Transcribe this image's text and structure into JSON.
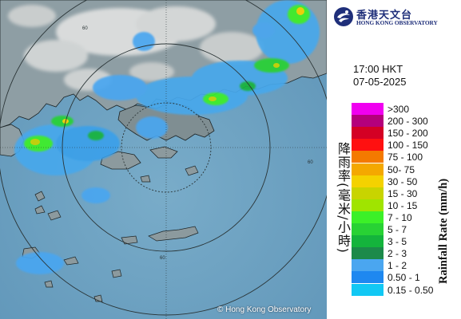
{
  "header": {
    "org_name_cn": "香港天文台",
    "org_name_en": "HONG KONG OBSERVATORY",
    "time": "17:00 HKT",
    "date": "07-05-2025"
  },
  "map": {
    "copyright": "© Hong Kong Observatory",
    "range_ring_labels": [
      "60",
      "60",
      "60"
    ],
    "colors": {
      "sea": "#6fa3c2",
      "land": "#8a9aa1",
      "urban": "#cfd2d2",
      "ring": "#2a3436"
    }
  },
  "legend": {
    "title_cn": "降雨率(毫米/小時)",
    "title_en": "Rainfall Rate (mm/h)",
    "items": [
      {
        "label": ">300",
        "color": "#f000f0"
      },
      {
        "label": "200 - 300",
        "color": "#b4007c"
      },
      {
        "label": "150 - 200",
        "color": "#d40024"
      },
      {
        "label": "100 - 150",
        "color": "#ff1010"
      },
      {
        "label": "75 - 100",
        "color": "#f47a00"
      },
      {
        "label": "50- 75",
        "color": "#f4a800"
      },
      {
        "label": "30 - 50",
        "color": "#f4d200"
      },
      {
        "label": "15 - 30",
        "color": "#c8d400"
      },
      {
        "label": "10 - 15",
        "color": "#a0e400"
      },
      {
        "label": "7 - 10",
        "color": "#3cf028"
      },
      {
        "label": "5 - 7",
        "color": "#28d234"
      },
      {
        "label": "3 - 5",
        "color": "#14b43c"
      },
      {
        "label": "2 - 3",
        "color": "#1c8a4a"
      },
      {
        "label": "1 - 2",
        "color": "#4aa6f0"
      },
      {
        "label": "0.50 - 1",
        "color": "#1e88f0"
      },
      {
        "label": "0.15 - 0.50",
        "color": "#12c8f4"
      }
    ]
  }
}
